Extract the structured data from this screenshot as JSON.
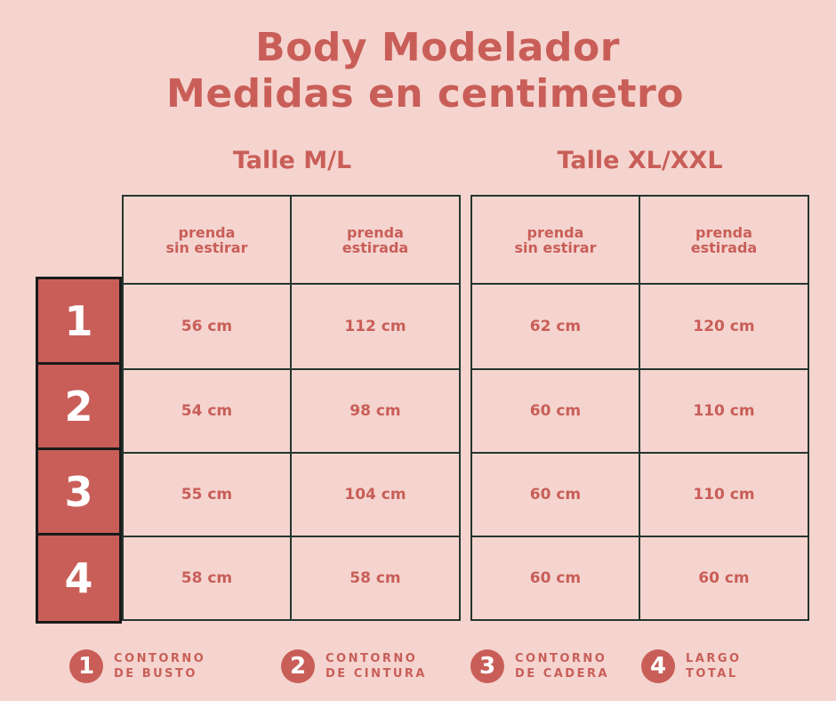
{
  "title_line1": "Body Modelador",
  "title_line2": "Medidas en centimetro",
  "sizes": [
    {
      "label": "Talle M/L",
      "col_headers": [
        "prenda\nsin estirar",
        "prenda\nestirada"
      ],
      "rows": [
        [
          "56 cm",
          "112 cm"
        ],
        [
          "54 cm",
          "98 cm"
        ],
        [
          "55 cm",
          "104 cm"
        ],
        [
          "58 cm",
          "58 cm"
        ]
      ]
    },
    {
      "label": "Talle XL/XXL",
      "col_headers": [
        "prenda\nsin estirar",
        "prenda\nestirada"
      ],
      "rows": [
        [
          "62 cm",
          "120 cm"
        ],
        [
          "60 cm",
          "110 cm"
        ],
        [
          "60 cm",
          "110 cm"
        ],
        [
          "60 cm",
          "60 cm"
        ]
      ]
    }
  ],
  "row_numbers": [
    "1",
    "2",
    "3",
    "4"
  ],
  "legend": [
    {
      "num": "1",
      "text": "CONTORNO\nDE BUSTO"
    },
    {
      "num": "2",
      "text": "CONTORNO\nDE CINTURA"
    },
    {
      "num": "3",
      "text": "CONTORNO\nDE CADERA"
    },
    {
      "num": "4",
      "text": "LARGO\nTOTAL"
    }
  ],
  "colors": {
    "accent": "#c95e58",
    "background": "#f5d4cf",
    "grid": "#24362f"
  }
}
